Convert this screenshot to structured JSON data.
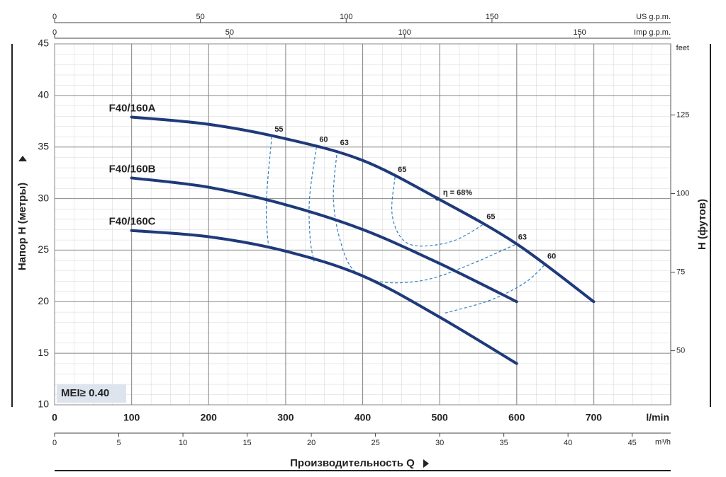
{
  "chart_data": {
    "type": "line",
    "x_label": "Производительность Q",
    "x_unit": "l/min",
    "y_label": "Напор H (метры)",
    "y2_label": "H (футов)",
    "y2_unit": "feet",
    "xlim": [
      0,
      800
    ],
    "xticks": [
      0,
      100,
      200,
      300,
      400,
      500,
      600,
      700
    ],
    "ylim": [
      10,
      45
    ],
    "yticks": [
      10,
      15,
      20,
      25,
      30,
      35,
      40,
      45
    ],
    "y2lim": [
      32.8,
      147.6
    ],
    "y2ticks": [
      50,
      75,
      100,
      125
    ],
    "top_axes": [
      {
        "label": "US g.p.m.",
        "xlim": [
          0,
          211.3
        ],
        "xticks": [
          0,
          50,
          100,
          150
        ]
      },
      {
        "label": "Imp g.p.m.",
        "xlim": [
          0,
          176
        ],
        "xticks": [
          0,
          50,
          100,
          150
        ]
      }
    ],
    "bottom_axis": {
      "label": "m³/h",
      "xlim": [
        0,
        48
      ],
      "xticks": [
        0,
        5,
        10,
        15,
        20,
        25,
        30,
        35,
        40,
        45
      ]
    },
    "series": [
      {
        "name": "F40/160A",
        "color": "#1f3a7a",
        "x": [
          100,
          200,
          300,
          400,
          500,
          600,
          700
        ],
        "values": [
          37.9,
          37.2,
          35.8,
          33.7,
          29.9,
          25.6,
          20
        ]
      },
      {
        "name": "F40/160B",
        "color": "#1f3a7a",
        "x": [
          100,
          200,
          300,
          400,
          500,
          600
        ],
        "values": [
          32.0,
          31.1,
          29.4,
          27.0,
          23.7,
          20
        ]
      },
      {
        "name": "F40/160C",
        "color": "#1f3a7a",
        "x": [
          100,
          200,
          300,
          400,
          500,
          600
        ],
        "values": [
          26.9,
          26.3,
          24.9,
          22.5,
          18.5,
          14
        ]
      }
    ],
    "efficiency_color": "#2f7fc0",
    "efficiency_curves": [
      {
        "label": "55",
        "x": [
          282,
          276,
          275,
          278
        ],
        "y": [
          36.0,
          31,
          28,
          25.2
        ]
      },
      {
        "label": "60",
        "x": [
          340,
          331,
          332,
          337
        ],
        "y": [
          35,
          30,
          26,
          23.9
        ]
      },
      {
        "label": "63",
        "x": [
          367,
          362,
          371,
          389,
          426,
          481,
          536,
          600
        ],
        "y": [
          34.7,
          30,
          25.9,
          23,
          21.9,
          22.1,
          23.5,
          25.6
        ]
      },
      {
        "label": "65",
        "x": [
          442,
          438,
          449,
          472,
          518,
          559
        ],
        "y": [
          32.1,
          28.7,
          26.3,
          25.4,
          25.9,
          27.6
        ]
      },
      {
        "label": "60",
        "x": [
          507,
          564,
          610,
          638
        ],
        "y": [
          18.9,
          20.1,
          21.8,
          23.7
        ]
      }
    ],
    "best_point": {
      "label": "η = 68%",
      "x": 497,
      "y": 30.0
    },
    "badge": "MEI≥ 0.40"
  }
}
